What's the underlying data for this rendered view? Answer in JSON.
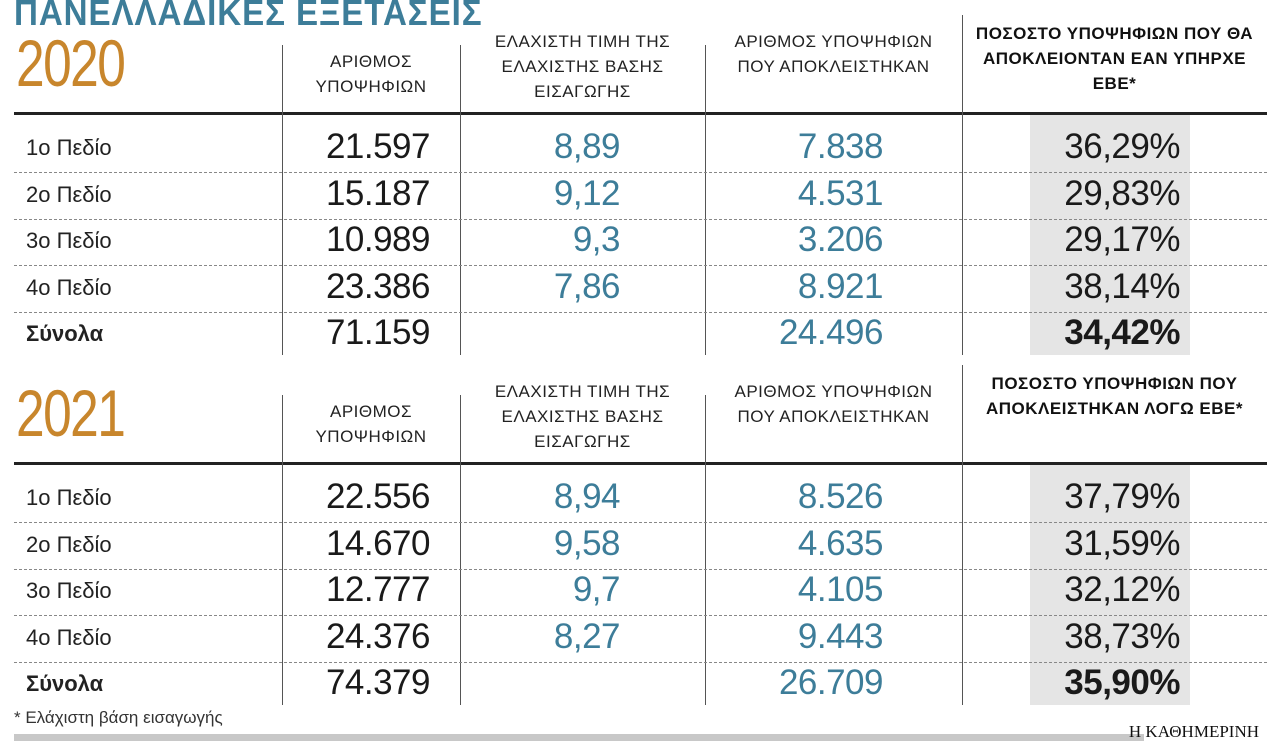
{
  "title": "ΠΑΝΕΛΛΑΔΙΚΕΣ ΕΞΕΤΑΣΕΙΣ",
  "colors": {
    "accent_blue": "#3d7d99",
    "year_orange": "#c8862c",
    "highlight_gray": "#e5e5e5"
  },
  "sections": [
    {
      "year": "2020",
      "headers": [
        "ΑΡΙΘΜΟΣ ΥΠΟΨΗΦΙΩΝ",
        "ΕΛΑΧΙΣΤΗ ΤΙΜΗ ΤΗΣ ΕΛΑΧΙΣΤΗΣ ΒΑΣΗΣ ΕΙΣΑΓΩΓΗΣ",
        "ΑΡΙΘΜΟΣ ΥΠΟΨΗΦΙΩΝ ΠΟΥ ΑΠΟΚΛΕΙΣΤΗΚΑΝ",
        "ΠΟΣΟΣΤΟ ΥΠΟΨΗΦΙΩΝ ΠΟΥ ΘΑ ΑΠΟΚΛΕΙΟΝΤΑΝ ΕΑΝ ΥΠΗΡΧΕ ΕΒΕ*"
      ],
      "rows": [
        {
          "label": "1ο Πεδίο",
          "candidates": "21.597",
          "min_base": "8,89",
          "excluded": "7.838",
          "pct": "36,29%"
        },
        {
          "label": "2ο Πεδίο",
          "candidates": "15.187",
          "min_base": "9,12",
          "excluded": "4.531",
          "pct": "29,83%"
        },
        {
          "label": "3ο Πεδίο",
          "candidates": "10.989",
          "min_base": "9,3",
          "excluded": "3.206",
          "pct": "29,17%"
        },
        {
          "label": "4ο Πεδίο",
          "candidates": "23.386",
          "min_base": "7,86",
          "excluded": "8.921",
          "pct": "38,14%"
        },
        {
          "label": "Σύνολα",
          "candidates": "71.159",
          "min_base": "",
          "excluded": "24.496",
          "pct": "34,42%"
        }
      ]
    },
    {
      "year": "2021",
      "headers": [
        "ΑΡΙΘΜΟΣ ΥΠΟΨΗΦΙΩΝ",
        "ΕΛΑΧΙΣΤΗ ΤΙΜΗ ΤΗΣ ΕΛΑΧΙΣΤΗΣ ΒΑΣΗΣ ΕΙΣΑΓΩΓΗΣ",
        "ΑΡΙΘΜΟΣ ΥΠΟΨΗΦΙΩΝ ΠΟΥ ΑΠΟΚΛΕΙΣΤΗΚΑΝ",
        "ΠΟΣΟΣΤΟ ΥΠΟΨΗΦΙΩΝ ΠΟΥ ΑΠΟΚΛΕΙΣΤΗΚΑΝ ΛΟΓΩ ΕΒΕ*"
      ],
      "rows": [
        {
          "label": "1ο Πεδίο",
          "candidates": "22.556",
          "min_base": "8,94",
          "excluded": "8.526",
          "pct": "37,79%"
        },
        {
          "label": "2ο Πεδίο",
          "candidates": "14.670",
          "min_base": "9,58",
          "excluded": "4.635",
          "pct": "31,59%"
        },
        {
          "label": "3ο Πεδίο",
          "candidates": "12.777",
          "min_base": "9,7",
          "excluded": "4.105",
          "pct": "32,12%"
        },
        {
          "label": "4ο Πεδίο",
          "candidates": "24.376",
          "min_base": "8,27",
          "excluded": "9.443",
          "pct": "38,73%"
        },
        {
          "label": "Σύνολα",
          "candidates": "74.379",
          "min_base": "",
          "excluded": "26.709",
          "pct": "35,90%"
        }
      ]
    }
  ],
  "footnote": "* Ελάχιστη βάση εισαγωγής",
  "brand": "Η ΚΑΘΗΜΕΡΙΝΗ"
}
